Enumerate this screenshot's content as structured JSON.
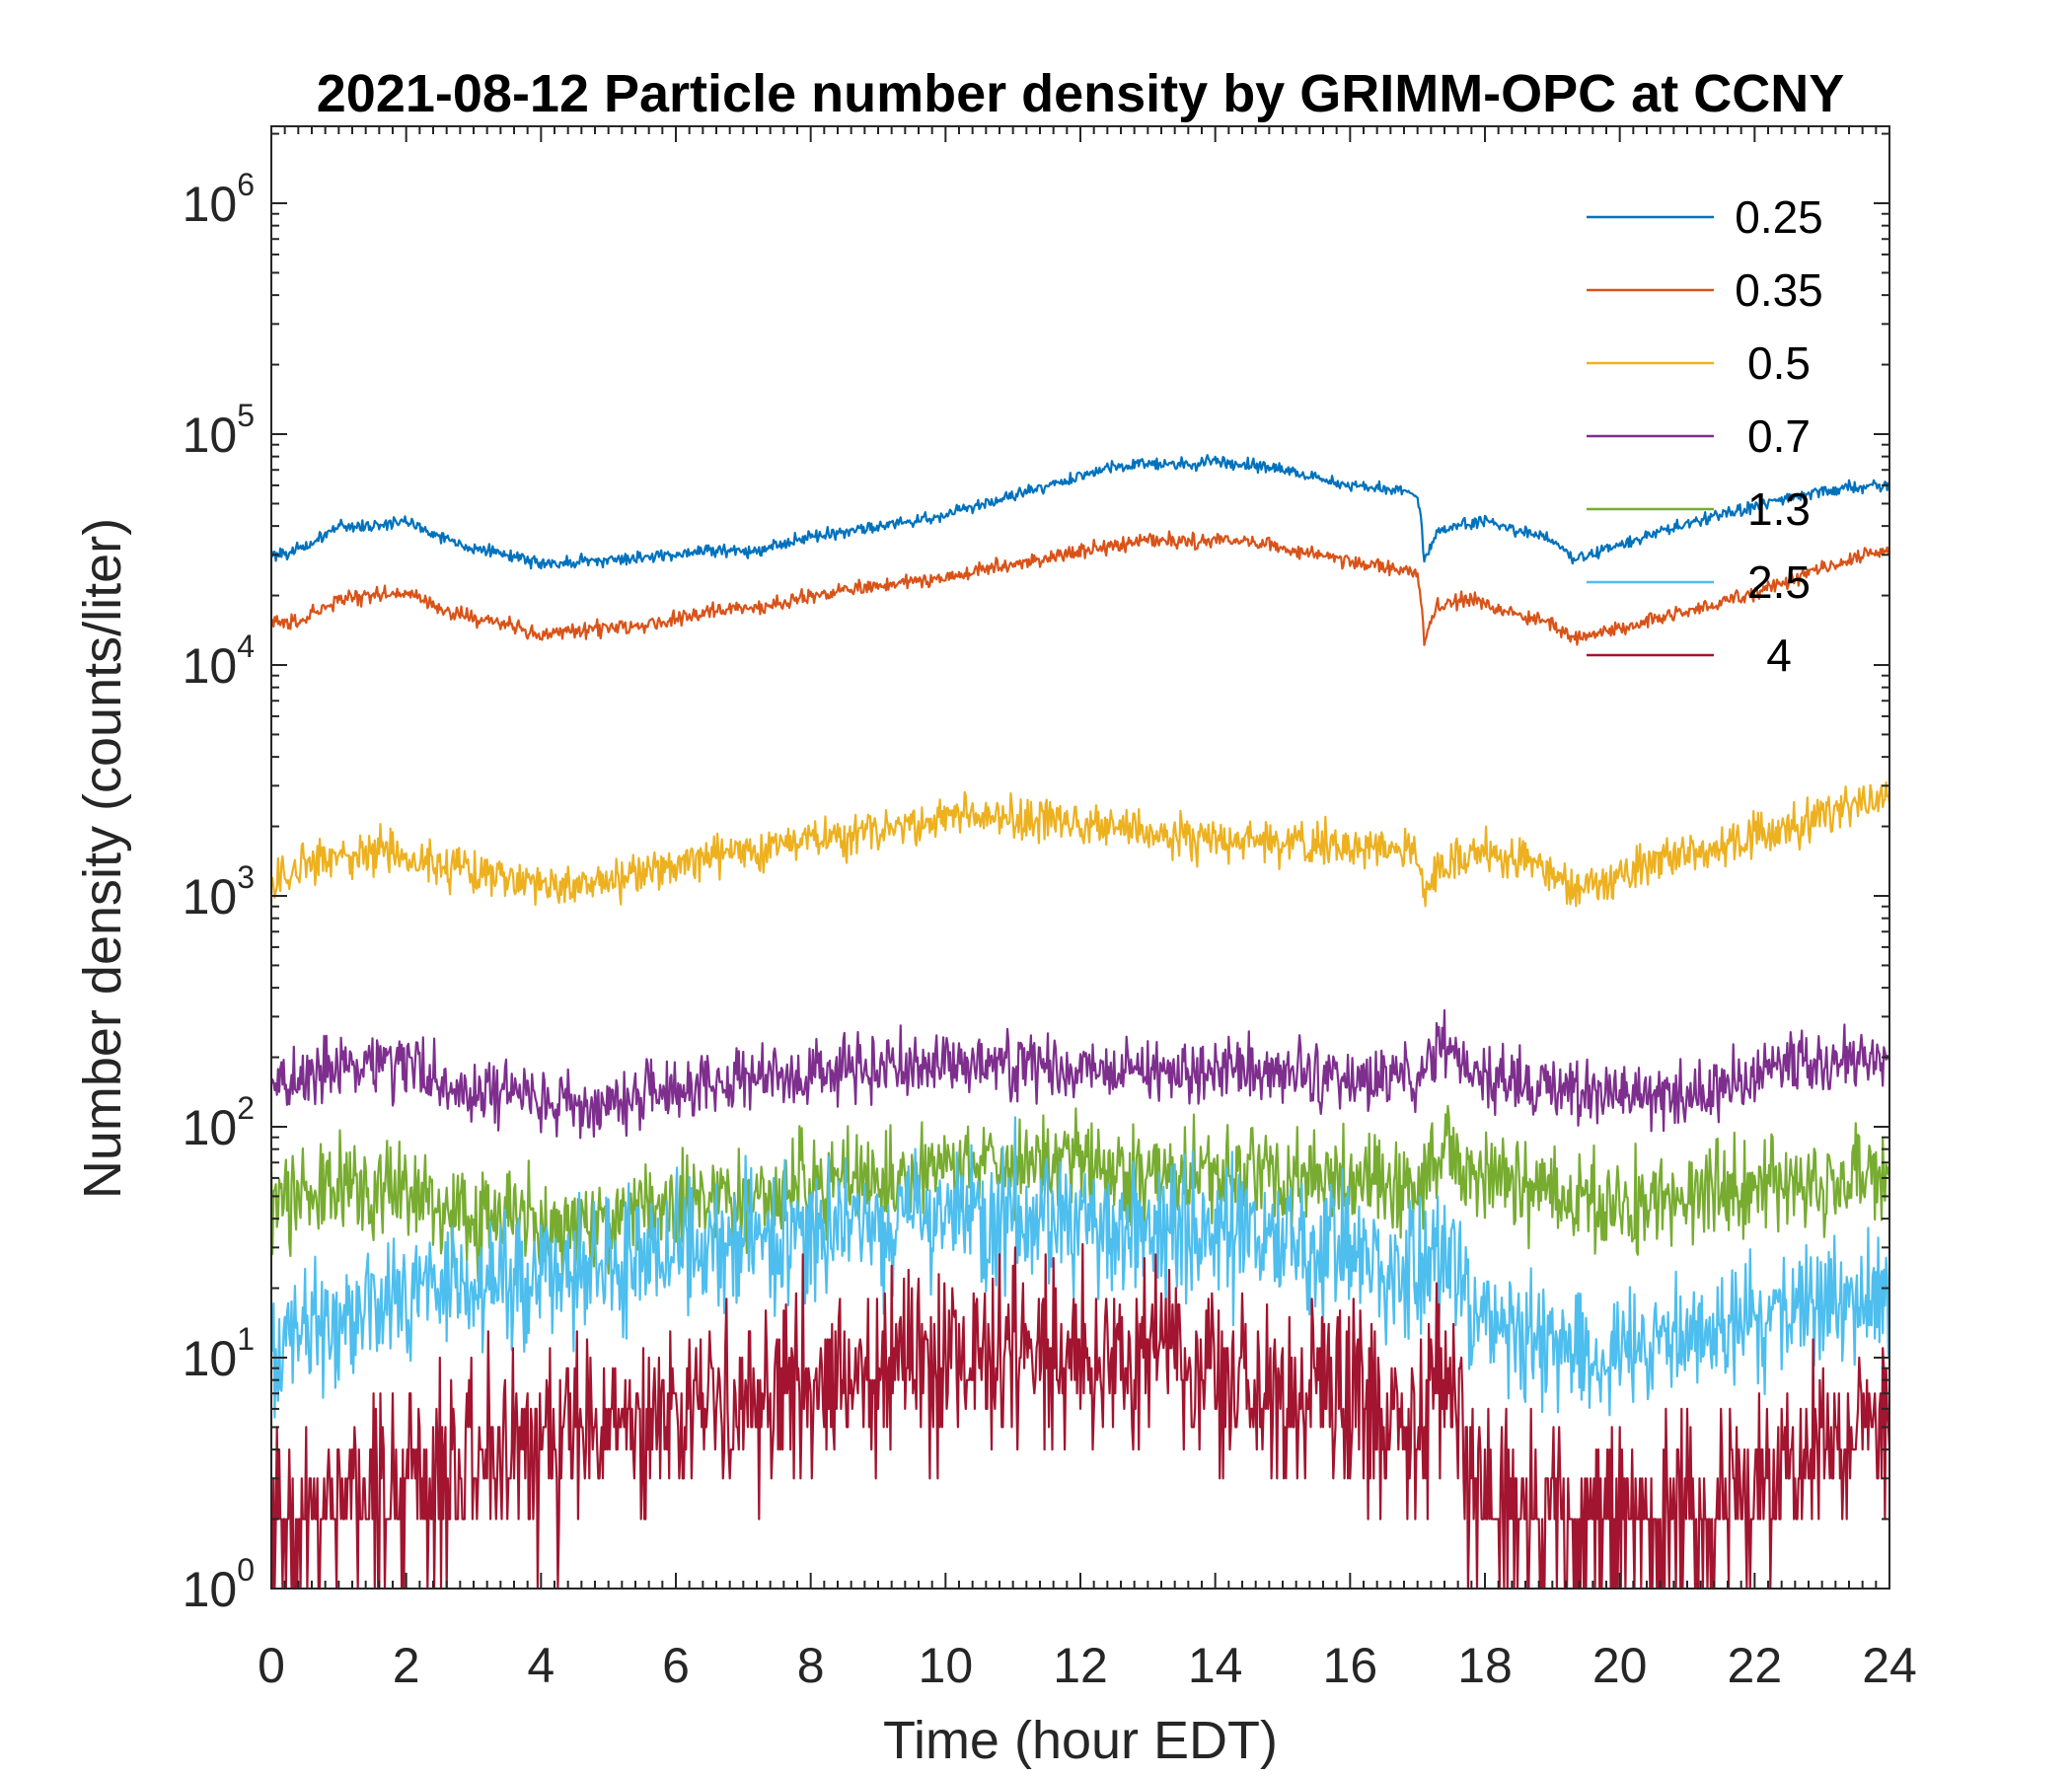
{
  "chart_data": {
    "type": "line",
    "title": "2021-08-12 Particle number density by GRIMM-OPC at CCNY",
    "xlabel": "Time (hour EDT)",
    "ylabel": "Number density (counts/liter)",
    "xlim": [
      0,
      24
    ],
    "ylim": [
      1,
      2000000
    ],
    "yscale": "log",
    "x_ticks": [
      "0",
      "2",
      "4",
      "6",
      "8",
      "10",
      "12",
      "14",
      "16",
      "18",
      "20",
      "22",
      "24"
    ],
    "y_ticks": [
      {
        "base": "10",
        "exp": "0"
      },
      {
        "base": "10",
        "exp": "1"
      },
      {
        "base": "10",
        "exp": "2"
      },
      {
        "base": "10",
        "exp": "3"
      },
      {
        "base": "10",
        "exp": "4"
      },
      {
        "base": "10",
        "exp": "5"
      },
      {
        "base": "10",
        "exp": "6"
      }
    ],
    "grid": false,
    "legend_position": "top-right",
    "series": [
      {
        "name": "0.25",
        "color": "#0072BD",
        "x": [
          0,
          0.5,
          1,
          1.5,
          2,
          2.5,
          3,
          3.5,
          4,
          4.5,
          5,
          5.5,
          6,
          6.5,
          7,
          7.5,
          8,
          8.5,
          9,
          9.5,
          10,
          10.5,
          11,
          11.5,
          12,
          12.5,
          13,
          13.5,
          14,
          14.5,
          15,
          15.5,
          16,
          16.4,
          17,
          17.1,
          17.3,
          17.6,
          18,
          18.5,
          19,
          19.3,
          19.6,
          20,
          20.5,
          21,
          21.5,
          22,
          22.5,
          23,
          23.5,
          24
        ],
        "y": [
          30000,
          32000,
          40000,
          40000,
          42000,
          36000,
          32000,
          30000,
          27500,
          28000,
          28500,
          29000,
          30500,
          31500,
          31000,
          33000,
          36000,
          38000,
          40000,
          42000,
          45000,
          49000,
          54000,
          60000,
          66000,
          72000,
          75000,
          74000,
          76000,
          74000,
          70000,
          65000,
          60000,
          59000,
          55000,
          28000,
          38000,
          40000,
          42000,
          38000,
          35000,
          29000,
          30000,
          33000,
          37000,
          41000,
          45000,
          49000,
          53000,
          56000,
          59000,
          60000
        ]
      },
      {
        "name": "0.35",
        "color": "#D95319",
        "x": [
          0,
          0.5,
          1,
          1.5,
          2,
          2.5,
          3,
          3.5,
          4,
          4.5,
          5,
          5.5,
          6,
          6.5,
          7,
          7.5,
          8,
          8.5,
          9,
          9.5,
          10,
          10.5,
          11,
          11.5,
          12,
          12.5,
          13,
          13.5,
          14,
          14.5,
          15,
          15.5,
          16,
          16.4,
          17,
          17.1,
          17.3,
          17.6,
          18,
          18.5,
          19,
          19.3,
          19.6,
          20,
          20.5,
          21,
          21.5,
          22,
          22.5,
          23,
          23.5,
          24
        ],
        "y": [
          15000,
          16000,
          19000,
          20000,
          20500,
          17500,
          16000,
          15000,
          13500,
          14000,
          14500,
          15000,
          16000,
          17000,
          17500,
          18500,
          20000,
          21000,
          22000,
          23000,
          24000,
          25500,
          27000,
          29000,
          31000,
          33000,
          35000,
          34000,
          35000,
          34000,
          32000,
          30000,
          28000,
          27000,
          25000,
          12500,
          18000,
          19000,
          18500,
          16500,
          15000,
          13000,
          13500,
          14500,
          15500,
          17000,
          18500,
          20500,
          23000,
          26000,
          29000,
          32000
        ]
      },
      {
        "name": "0.5",
        "color": "#EDB120",
        "x": [
          0,
          0.5,
          1,
          1.5,
          2,
          2.5,
          3,
          3.5,
          4,
          4.5,
          5,
          5.5,
          6,
          6.5,
          7,
          7.5,
          8,
          8.5,
          9,
          9.5,
          10,
          10.5,
          11,
          11.5,
          12,
          12.5,
          13,
          13.5,
          14,
          14.5,
          15,
          15.5,
          16,
          16.4,
          17,
          17.1,
          17.3,
          17.6,
          18,
          18.5,
          19,
          19.3,
          19.6,
          20,
          20.5,
          21,
          21.5,
          22,
          22.5,
          23,
          23.5,
          24
        ],
        "y": [
          1100,
          1300,
          1500,
          1550,
          1500,
          1350,
          1250,
          1200,
          1100,
          1100,
          1150,
          1250,
          1350,
          1450,
          1550,
          1650,
          1750,
          1850,
          1950,
          2050,
          2150,
          2250,
          2200,
          2150,
          2050,
          1950,
          1850,
          1800,
          1750,
          1700,
          1700,
          1650,
          1600,
          1650,
          1500,
          1000,
          1450,
          1450,
          1500,
          1400,
          1250,
          1100,
          1100,
          1200,
          1400,
          1550,
          1650,
          1800,
          2000,
          2200,
          2400,
          2600
        ]
      },
      {
        "name": "0.7",
        "color": "#7E2F8E",
        "x": [
          0,
          0.5,
          1,
          1.5,
          2,
          2.5,
          3,
          3.5,
          4,
          4.5,
          5,
          5.5,
          6,
          6.5,
          7,
          7.5,
          8,
          8.5,
          9,
          9.5,
          10,
          10.5,
          11,
          11.5,
          12,
          12.5,
          13,
          13.5,
          14,
          14.5,
          15,
          15.5,
          16,
          16.5,
          17,
          17.4,
          17.8,
          18,
          18.5,
          19,
          19.5,
          20,
          20.5,
          21,
          21.5,
          22,
          22.5,
          23,
          23.5,
          24
        ],
        "y": [
          150,
          165,
          185,
          190,
          180,
          160,
          145,
          140,
          125,
          120,
          125,
          135,
          145,
          155,
          160,
          165,
          170,
          175,
          180,
          185,
          190,
          195,
          190,
          185,
          180,
          180,
          175,
          175,
          180,
          180,
          170,
          165,
          160,
          165,
          165,
          230,
          165,
          165,
          160,
          150,
          140,
          135,
          135,
          140,
          150,
          165,
          180,
          190,
          195,
          190
        ]
      },
      {
        "name": "1.3",
        "color": "#77AC30",
        "x": [
          0,
          0.5,
          1,
          1.5,
          2,
          2.5,
          3,
          3.5,
          4,
          4.5,
          5,
          5.5,
          6,
          6.5,
          7,
          7.5,
          8,
          8.5,
          9,
          9.5,
          10,
          10.5,
          11,
          11.5,
          12,
          12.5,
          13,
          13.5,
          14,
          14.5,
          15,
          15.5,
          16,
          16.5,
          17,
          17.4,
          17.8,
          18,
          18.5,
          19,
          19.5,
          20,
          20.5,
          21,
          21.5,
          22,
          22.5,
          23,
          23.5,
          24
        ],
        "y": [
          45,
          50,
          55,
          55,
          50,
          45,
          40,
          40,
          38,
          38,
          40,
          42,
          45,
          48,
          50,
          52,
          55,
          57,
          60,
          62,
          65,
          67,
          70,
          70,
          68,
          66,
          65,
          63,
          62,
          62,
          60,
          58,
          56,
          56,
          55,
          90,
          60,
          58,
          55,
          50,
          47,
          46,
          47,
          50,
          53,
          56,
          58,
          60,
          60,
          60
        ]
      },
      {
        "name": "2.5",
        "color": "#4DBEEE",
        "x": [
          0,
          0.5,
          1,
          1.5,
          2,
          2.5,
          3,
          3.5,
          4,
          4.5,
          5,
          5.5,
          6,
          6.5,
          7,
          7.5,
          8,
          8.5,
          9,
          9.5,
          10,
          10.5,
          11,
          11.5,
          12,
          12.5,
          13,
          13.5,
          14,
          14.5,
          15,
          15.5,
          16,
          16.5,
          17,
          17.4,
          17.8,
          18,
          18.5,
          19,
          19.5,
          20,
          20.5,
          21,
          21.5,
          22,
          22.5,
          23,
          23.5,
          24
        ],
        "y": [
          12,
          13,
          15,
          17,
          18,
          19,
          20,
          21,
          22,
          23,
          25,
          27,
          30,
          32,
          33,
          34,
          35,
          36,
          37,
          38,
          40,
          42,
          42,
          41,
          40,
          38,
          37,
          36,
          35,
          34,
          32,
          30,
          28,
          26,
          25,
          30,
          16,
          14,
          13,
          12,
          11,
          11,
          11,
          12,
          13,
          14,
          15,
          17,
          18,
          20
        ]
      },
      {
        "name": "4",
        "color": "#A2142F",
        "x": [
          0,
          0.5,
          1,
          1.5,
          2,
          2.5,
          3,
          3.5,
          4,
          4.5,
          5,
          5.5,
          6,
          6.5,
          7,
          7.5,
          8,
          8.5,
          9,
          9.5,
          10,
          10.5,
          11,
          11.5,
          12,
          12.5,
          13,
          13.5,
          14,
          14.5,
          15,
          15.5,
          16,
          16.5,
          17,
          17.4,
          17.8,
          18,
          18.5,
          19,
          19.5,
          20,
          20.5,
          21,
          21.5,
          22,
          22.5,
          23,
          23.5,
          24
        ],
        "y": [
          1.5,
          2,
          2.5,
          2.8,
          3,
          3.2,
          3.5,
          3.8,
          4,
          4.5,
          5,
          5.5,
          6,
          6.5,
          7,
          7.5,
          8,
          8.5,
          9,
          9.5,
          10,
          11,
          11,
          10.5,
          10,
          9.5,
          9,
          8.5,
          8,
          7.5,
          7,
          6.5,
          6,
          5.5,
          5,
          8,
          3,
          2.5,
          2.2,
          2,
          2,
          2,
          2,
          2.2,
          2.5,
          3,
          3.5,
          4,
          4.5,
          5
        ]
      }
    ]
  }
}
